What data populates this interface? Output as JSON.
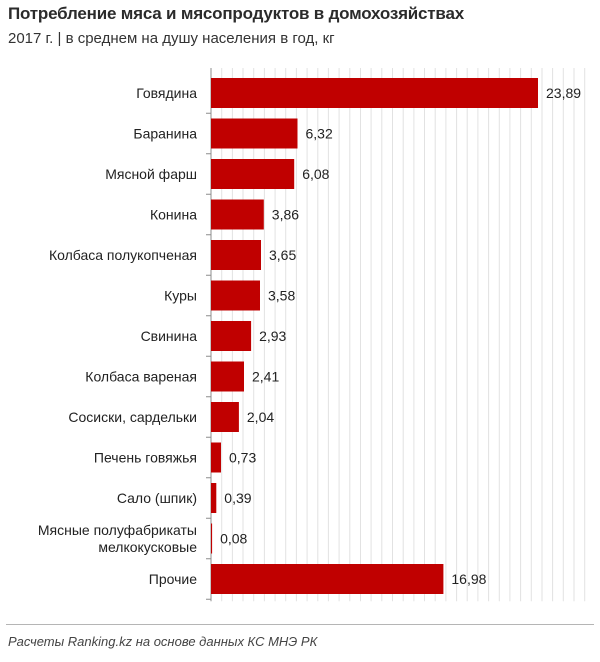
{
  "header": {
    "title": "Потребление мяса и мясопродуктов в домохозяйствах",
    "subtitle": "2017 г. | в среднем на душу населения в год, кг"
  },
  "footer": {
    "source": "Расчеты Ranking.kz на основе данных КС МНЭ РК"
  },
  "colors": {
    "bar": "#c00000",
    "grid": "#e2e2e2",
    "axis": "#8c8c8c"
  },
  "chart_data": {
    "type": "bar",
    "orientation": "horizontal",
    "categories": [
      [
        "Говядина"
      ],
      [
        "Баранина"
      ],
      [
        "Мясной фарш"
      ],
      [
        "Конина"
      ],
      [
        "Колбаса полукопченая"
      ],
      [
        "Куры"
      ],
      [
        "Свинина"
      ],
      [
        "Колбаса вареная"
      ],
      [
        "Сосиски, сардельки"
      ],
      [
        "Печень говяжья"
      ],
      [
        "Сало (шпик)"
      ],
      [
        "Мясные полуфабрикаты",
        "мелкокусковые"
      ],
      [
        "Прочие"
      ]
    ],
    "values": [
      23.89,
      6.32,
      6.08,
      3.86,
      3.65,
      3.58,
      2.93,
      2.41,
      2.04,
      0.73,
      0.39,
      0.08,
      16.98
    ],
    "value_labels": [
      "23,89",
      "6,32",
      "6,08",
      "3,86",
      "3,65",
      "3,58",
      "2,93",
      "2,41",
      "2,04",
      "0,73",
      "0,39",
      "0,08",
      "16,98"
    ],
    "xlim": [
      0,
      25
    ],
    "grid": true,
    "gridlines": "vertical",
    "legend": "none"
  }
}
